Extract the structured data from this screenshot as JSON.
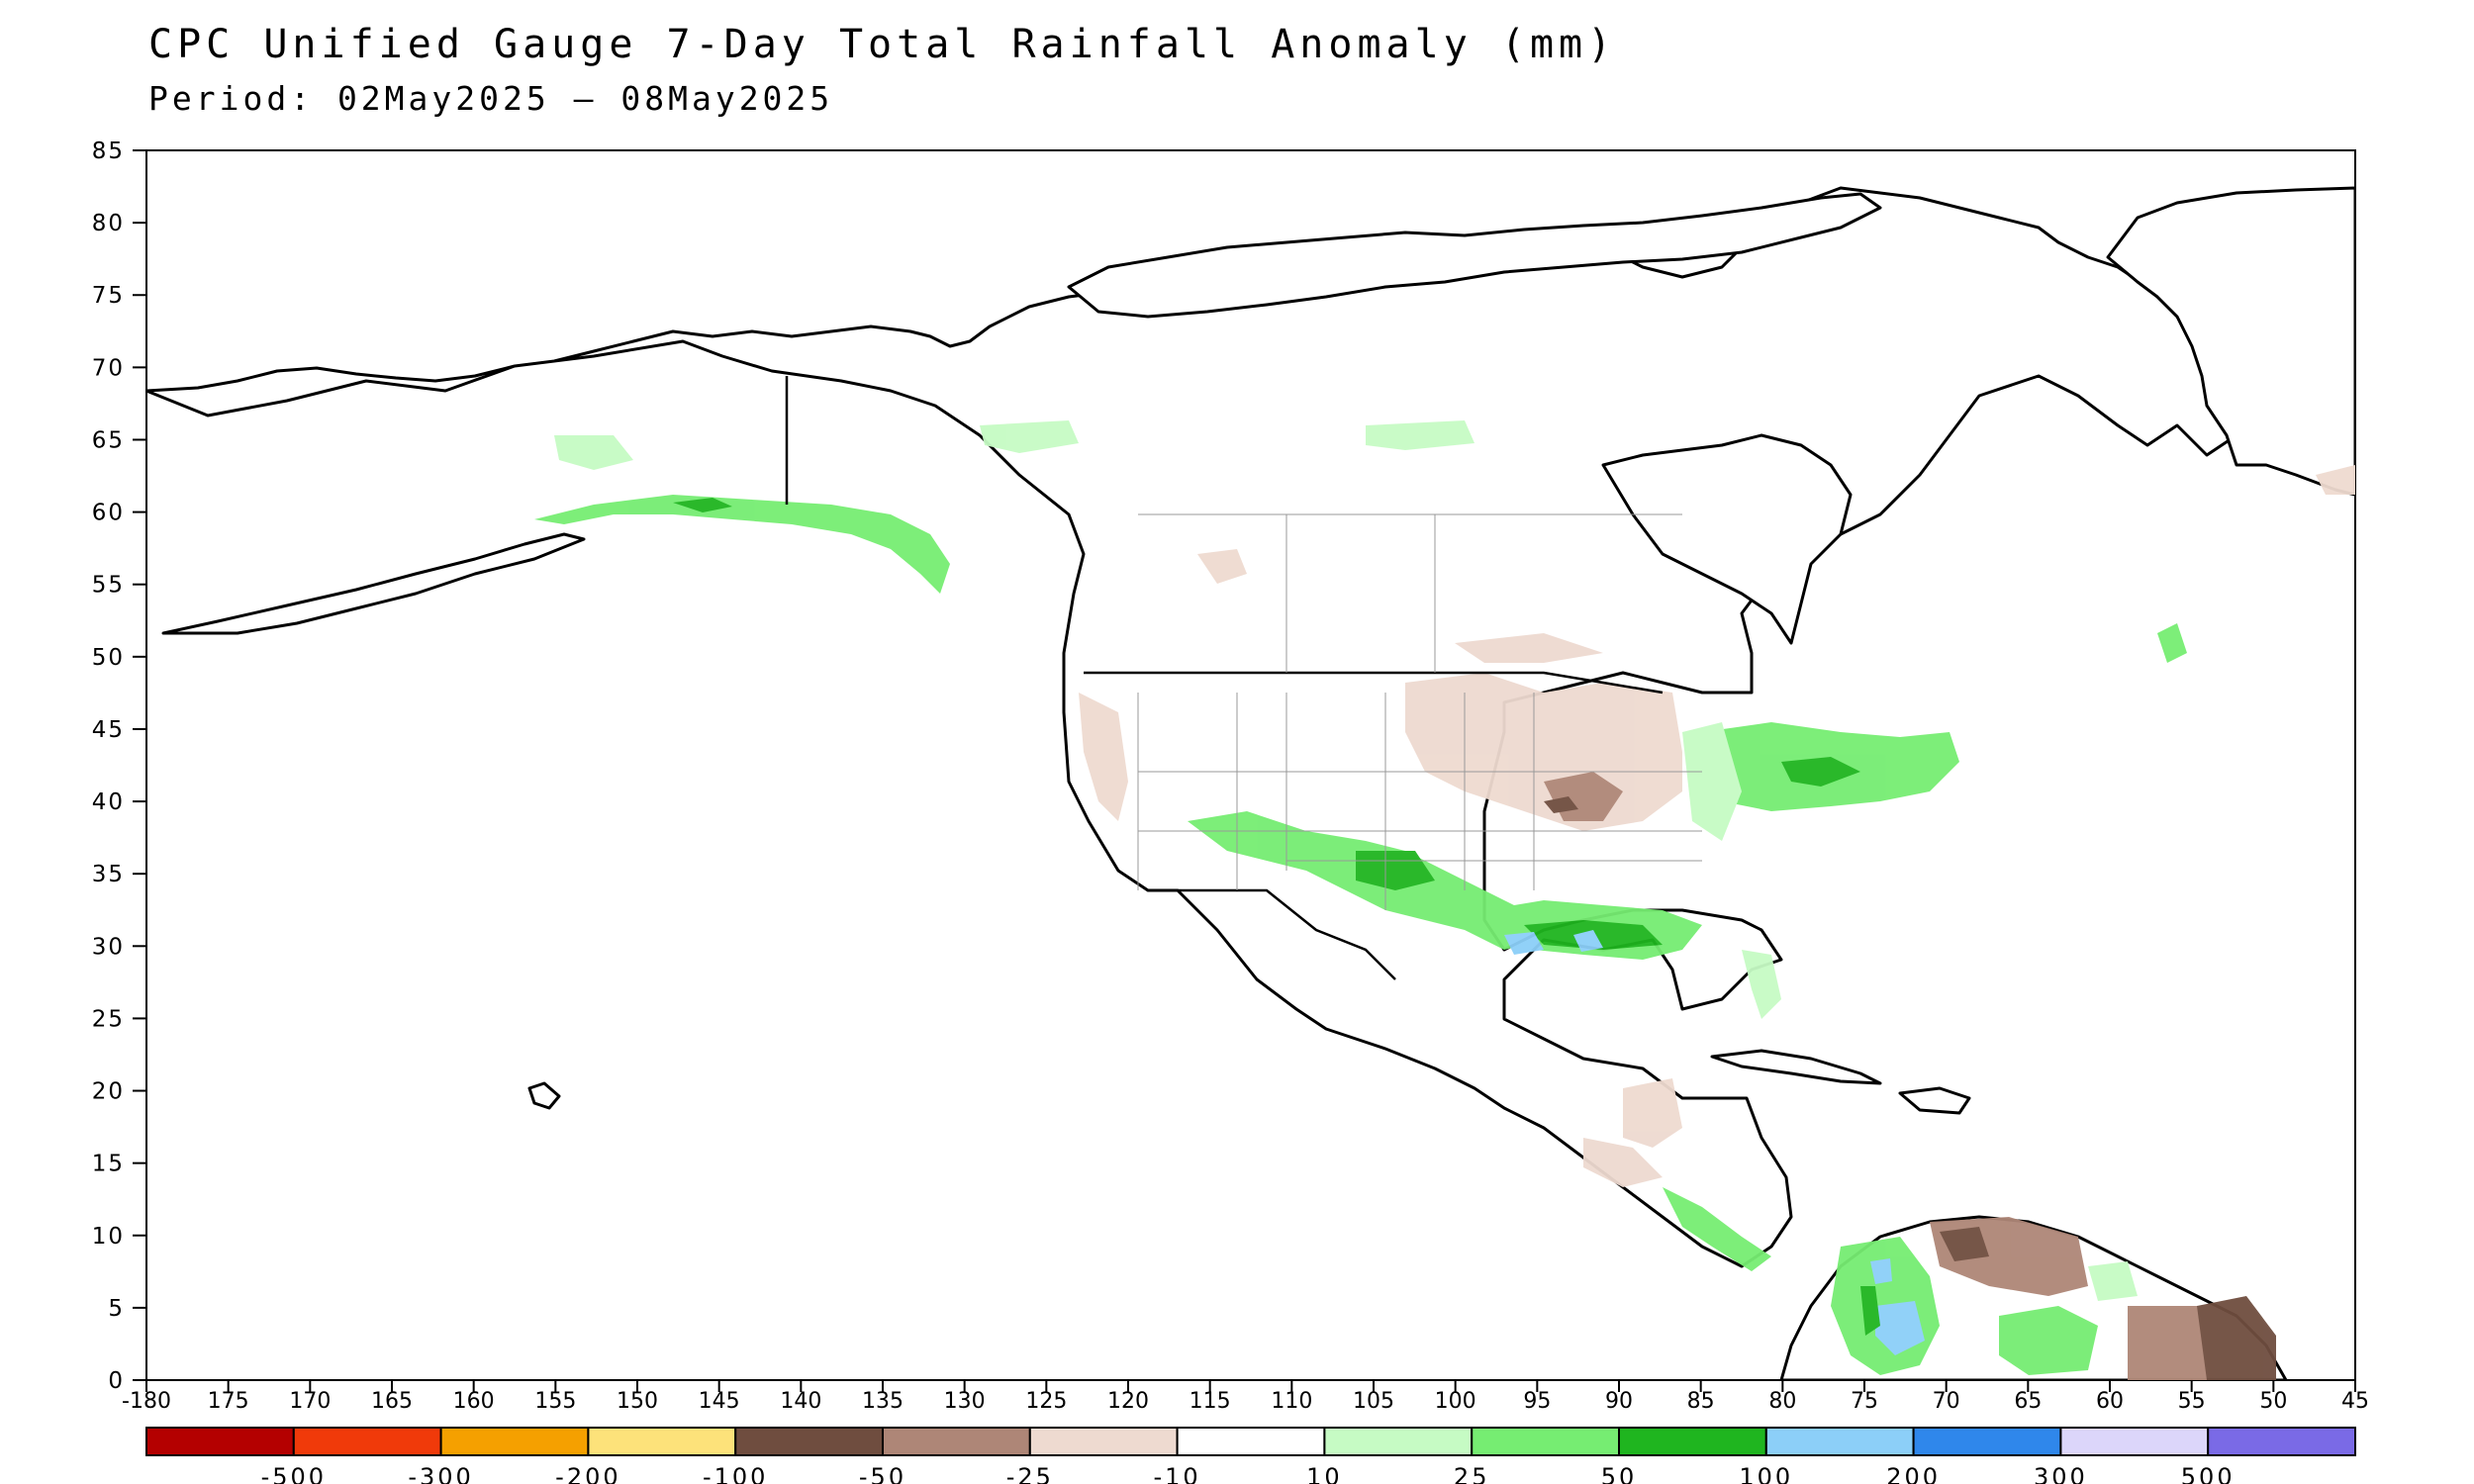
{
  "header": {
    "title": "CPC Unified Gauge 7-Day Total Rainfall Anomaly (mm)",
    "period": "Period: 02May2025 – 08May2025"
  },
  "axes": {
    "lat_ticks": [
      "85",
      "80",
      "75",
      "70",
      "65",
      "60",
      "55",
      "50",
      "45",
      "40",
      "35",
      "30",
      "25",
      "20",
      "15",
      "10",
      "5",
      "0"
    ],
    "lon_ticks": [
      "-180",
      "175",
      "170",
      "165",
      "160",
      "155",
      "150",
      "145",
      "140",
      "135",
      "130",
      "125",
      "120",
      "115",
      "110",
      "105",
      "100",
      "95",
      "90",
      "85",
      "80",
      "75",
      "70",
      "65",
      "60",
      "55",
      "50",
      "45"
    ]
  },
  "legend": {
    "colors": [
      "#b40000",
      "#f03a0a",
      "#f5a000",
      "#fde27a",
      "#6f4d3f",
      "#ae8677",
      "#eedad0",
      "#ffffff",
      "#c6fbc4",
      "#76ed72",
      "#1fb51f",
      "#8ccff8",
      "#2f87eb",
      "#dcd6fa",
      "#7a6ae6"
    ],
    "labels": [
      "-500",
      "-300",
      "-200",
      "-100",
      "-50",
      "-25",
      "-10",
      "10",
      "25",
      "50",
      "100",
      "200",
      "300",
      "500"
    ]
  },
  "map": {
    "basemap": "north-america-coastlines",
    "anomaly_regions": [
      {
        "name": "eastern-us-great-lakes",
        "category": "50 to 100",
        "color": "#1fb51f"
      },
      {
        "name": "texas-oklahoma",
        "category": "50 to 100",
        "color": "#1fb51f"
      },
      {
        "name": "gulf-coast-louisiana",
        "category": "100 to 200",
        "color": "#8ccff8"
      },
      {
        "name": "colombia",
        "category": "100 to 200",
        "color": "#8ccff8"
      },
      {
        "name": "southeast-alaska",
        "category": "50 to 100",
        "color": "#1fb51f"
      },
      {
        "name": "northern-plains",
        "category": "-25 to -10",
        "color": "#eedad0"
      },
      {
        "name": "venezuela-guiana",
        "category": "-100 to -50",
        "color": "#6f4d3f"
      }
    ]
  }
}
